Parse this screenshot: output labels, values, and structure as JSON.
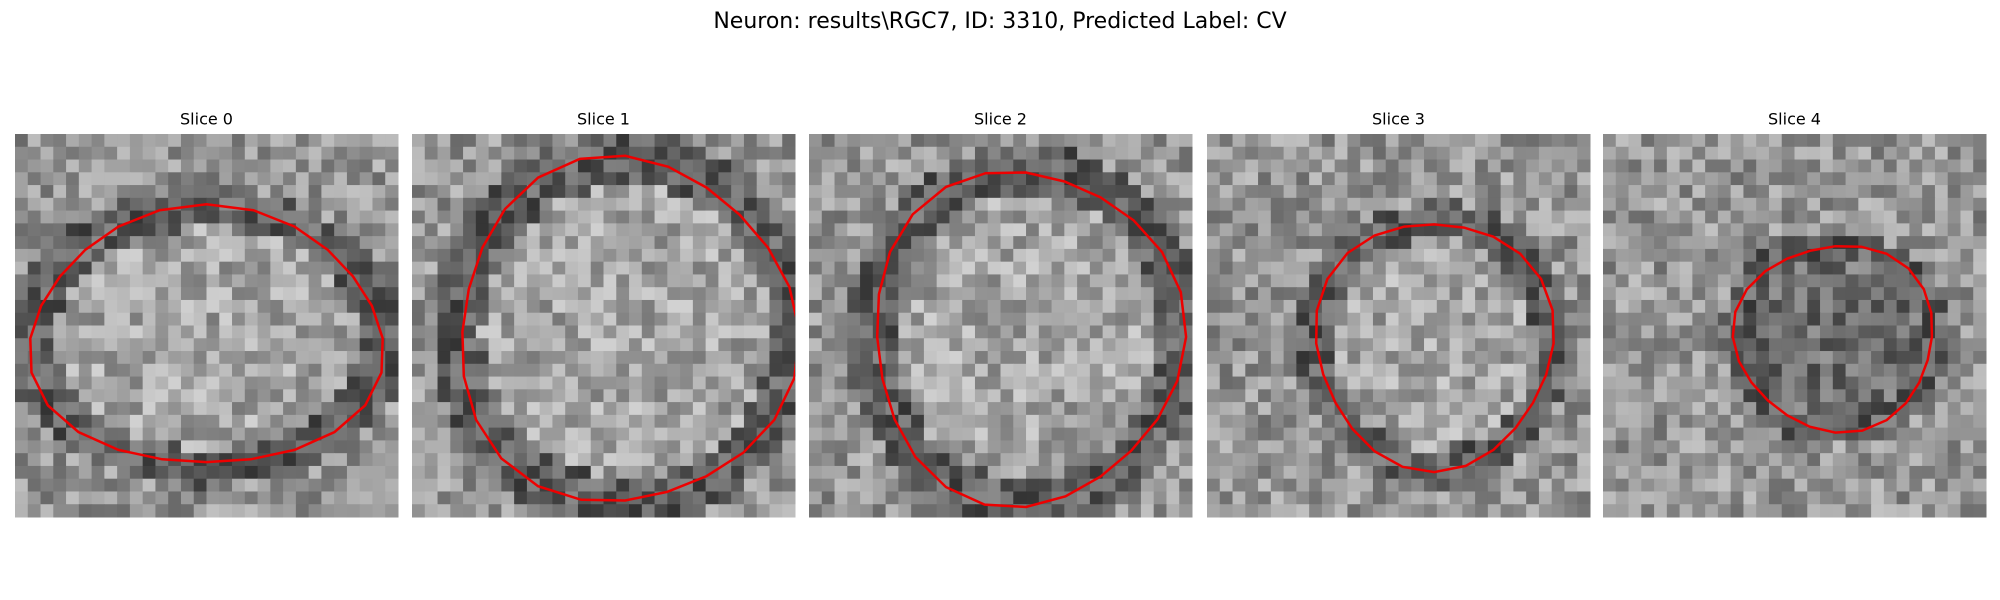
{
  "title": "Neuron: results\\RGC7, ID: 3310, Predicted Label: CV",
  "panels": [
    {
      "label": "Slice 0"
    },
    {
      "label": "Slice 1"
    },
    {
      "label": "Slice 2"
    },
    {
      "label": "Slice 3"
    },
    {
      "label": "Slice 4"
    }
  ]
}
